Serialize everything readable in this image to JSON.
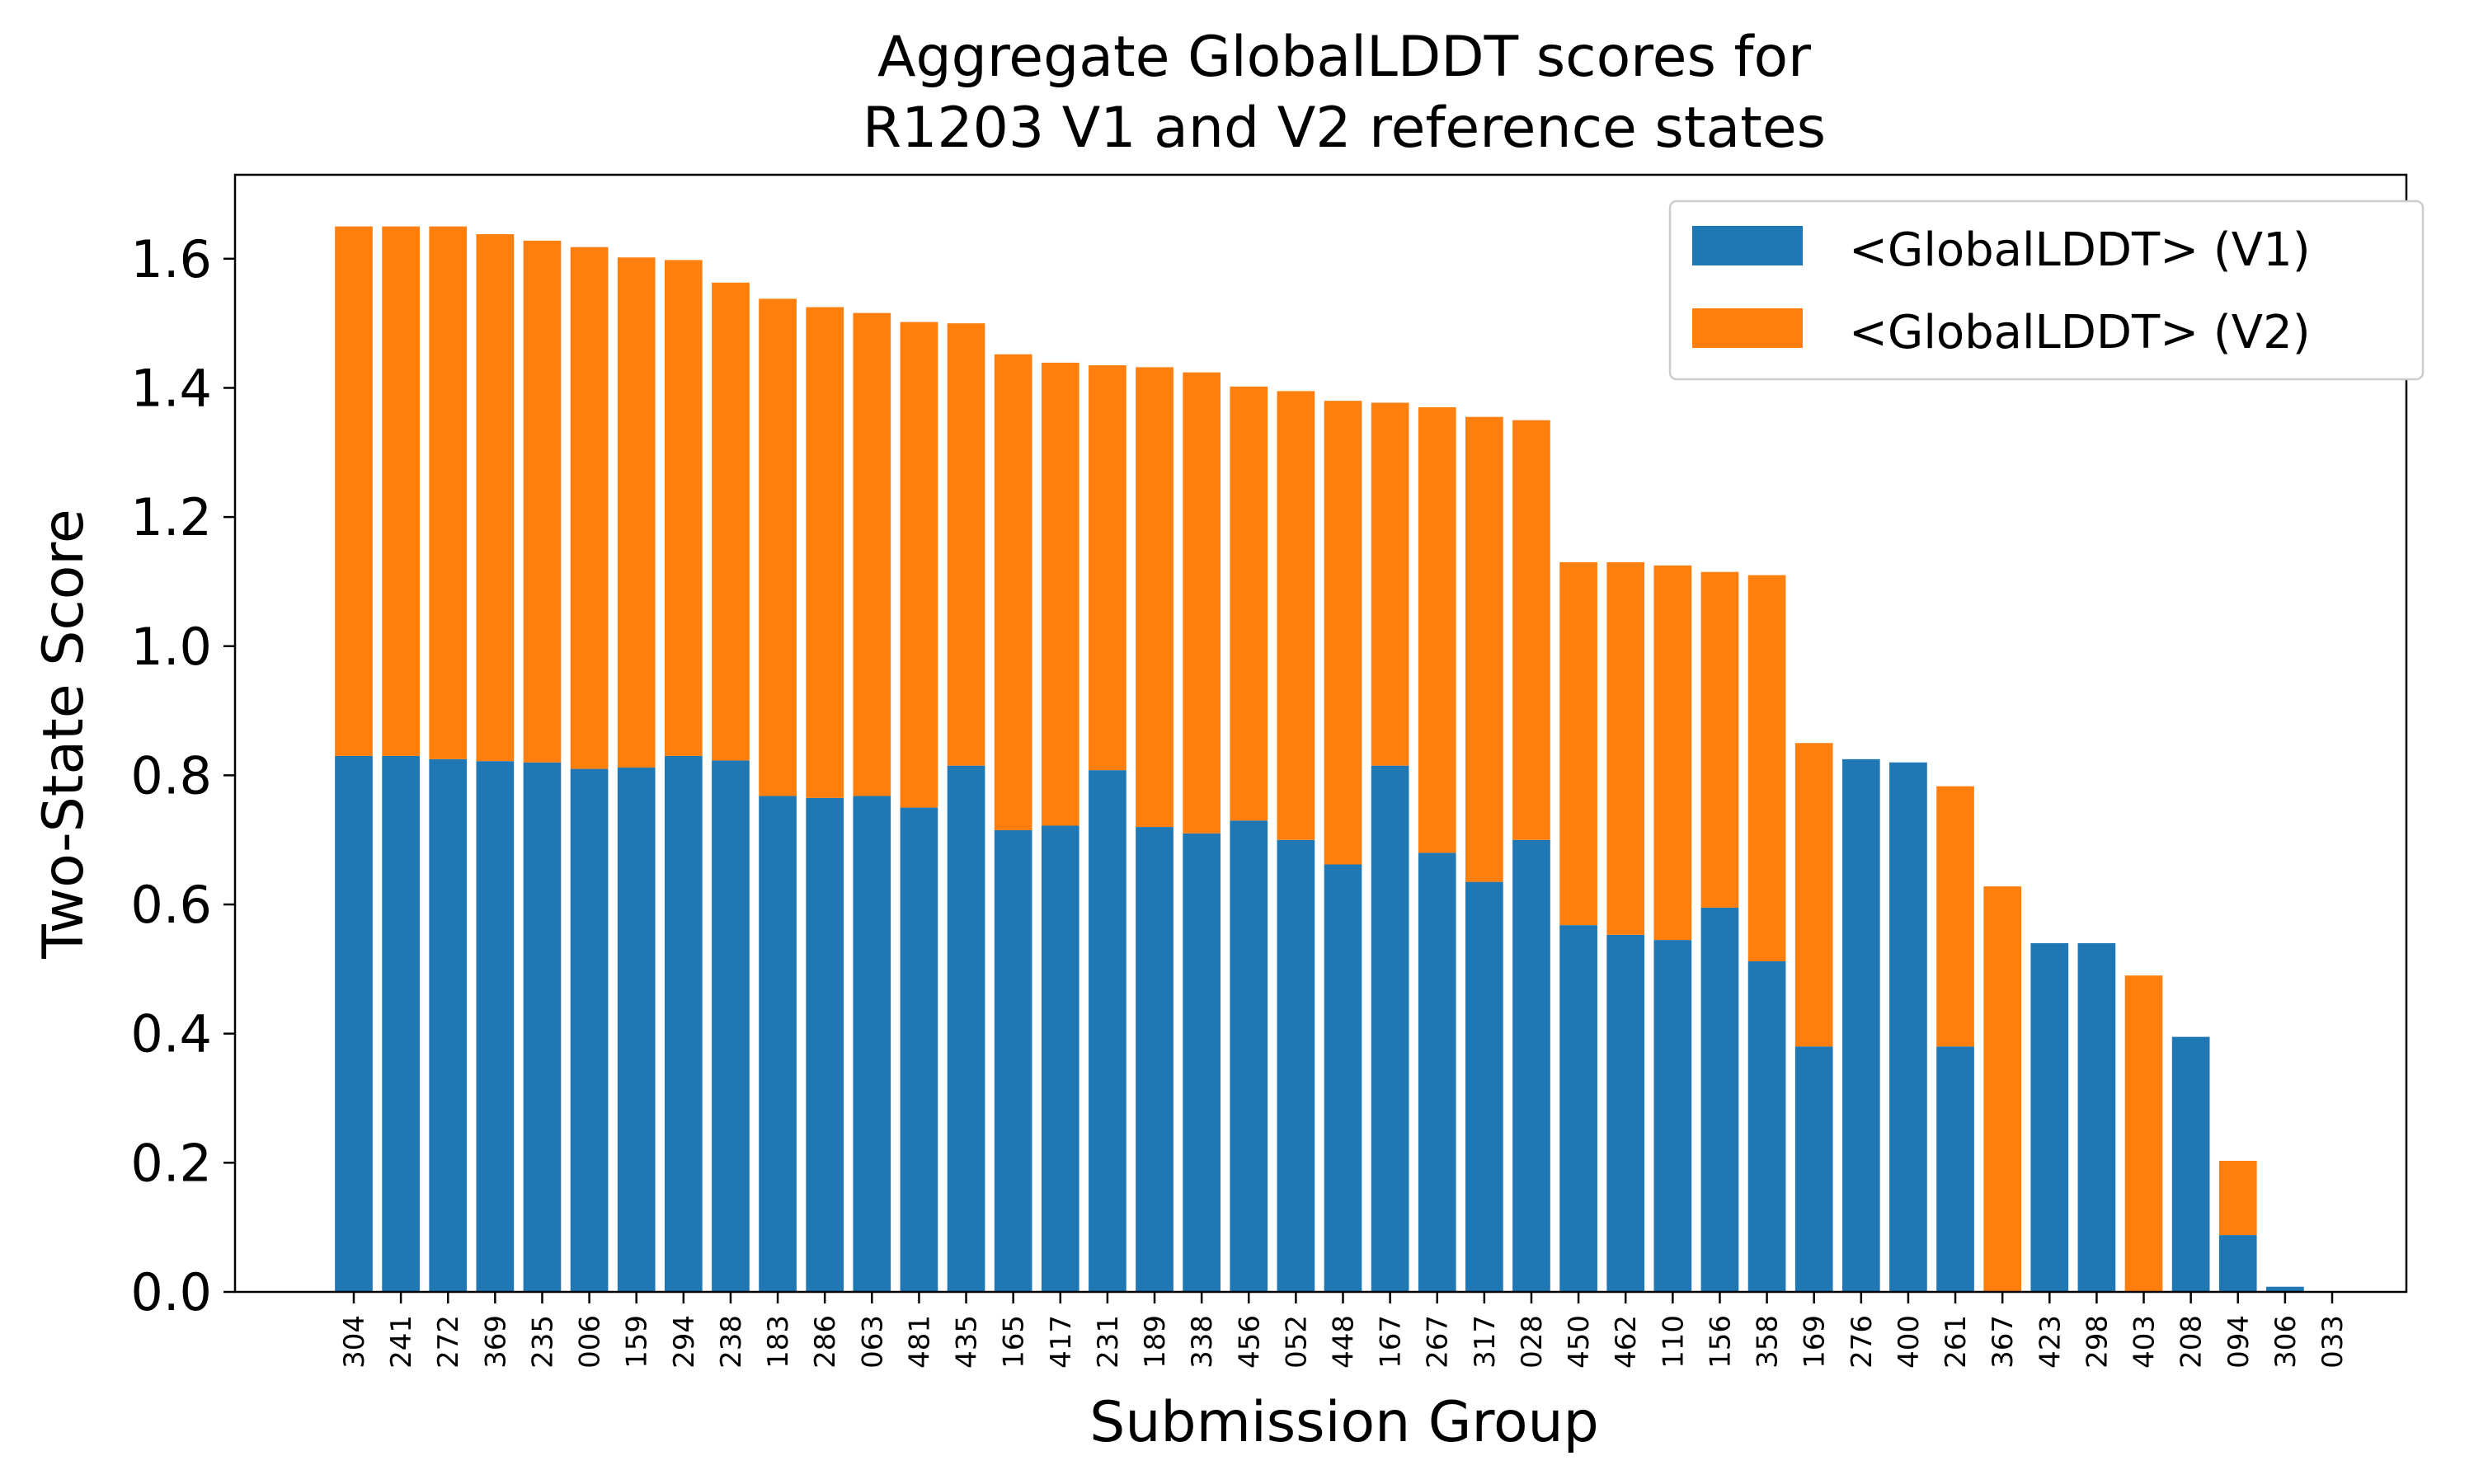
{
  "chart_data": {
    "type": "bar",
    "stacked": true,
    "title_line1": "Aggregate GlobalLDDT scores for",
    "title_line2": "R1203 V1 and V2 reference states",
    "xlabel": "Submission Group",
    "ylabel": "Two-State Score",
    "ylim": [
      0,
      1.73
    ],
    "yticks": [
      "0.0",
      "0.2",
      "0.4",
      "0.6",
      "0.8",
      "1.0",
      "1.2",
      "1.4",
      "1.6"
    ],
    "legend_position": "top-right",
    "categories": [
      "304",
      "241",
      "272",
      "369",
      "235",
      "006",
      "159",
      "294",
      "238",
      "183",
      "286",
      "063",
      "481",
      "435",
      "165",
      "417",
      "231",
      "189",
      "338",
      "456",
      "052",
      "448",
      "167",
      "267",
      "317",
      "028",
      "450",
      "462",
      "110",
      "156",
      "358",
      "169",
      "276",
      "400",
      "261",
      "367",
      "423",
      "298",
      "403",
      "208",
      "094",
      "306",
      "033"
    ],
    "series": [
      {
        "name": "<GlobalLDDT> (V1)",
        "color": "#1f77b4",
        "values": [
          0.83,
          0.83,
          0.825,
          0.822,
          0.82,
          0.81,
          0.812,
          0.83,
          0.823,
          0.768,
          0.765,
          0.768,
          0.75,
          0.815,
          0.715,
          0.722,
          0.808,
          0.72,
          0.71,
          0.73,
          0.7,
          0.662,
          0.815,
          0.68,
          0.635,
          0.7,
          0.568,
          0.553,
          0.545,
          0.595,
          0.512,
          0.38,
          0.825,
          0.82,
          0.38,
          0.0,
          0.54,
          0.54,
          0.0,
          0.395,
          0.088,
          0.008,
          0.0
        ]
      },
      {
        "name": "<GlobalLDDT> (V2)",
        "color": "#ff7f0e",
        "values": [
          0.82,
          0.82,
          0.825,
          0.816,
          0.808,
          0.808,
          0.79,
          0.768,
          0.74,
          0.77,
          0.76,
          0.748,
          0.752,
          0.685,
          0.737,
          0.717,
          0.627,
          0.712,
          0.714,
          0.672,
          0.695,
          0.718,
          0.562,
          0.69,
          0.72,
          0.65,
          0.562,
          0.577,
          0.58,
          0.52,
          0.598,
          0.47,
          0.0,
          0.0,
          0.403,
          0.628,
          0.0,
          0.0,
          0.49,
          0.0,
          0.115,
          0.0,
          0.0
        ]
      }
    ]
  }
}
